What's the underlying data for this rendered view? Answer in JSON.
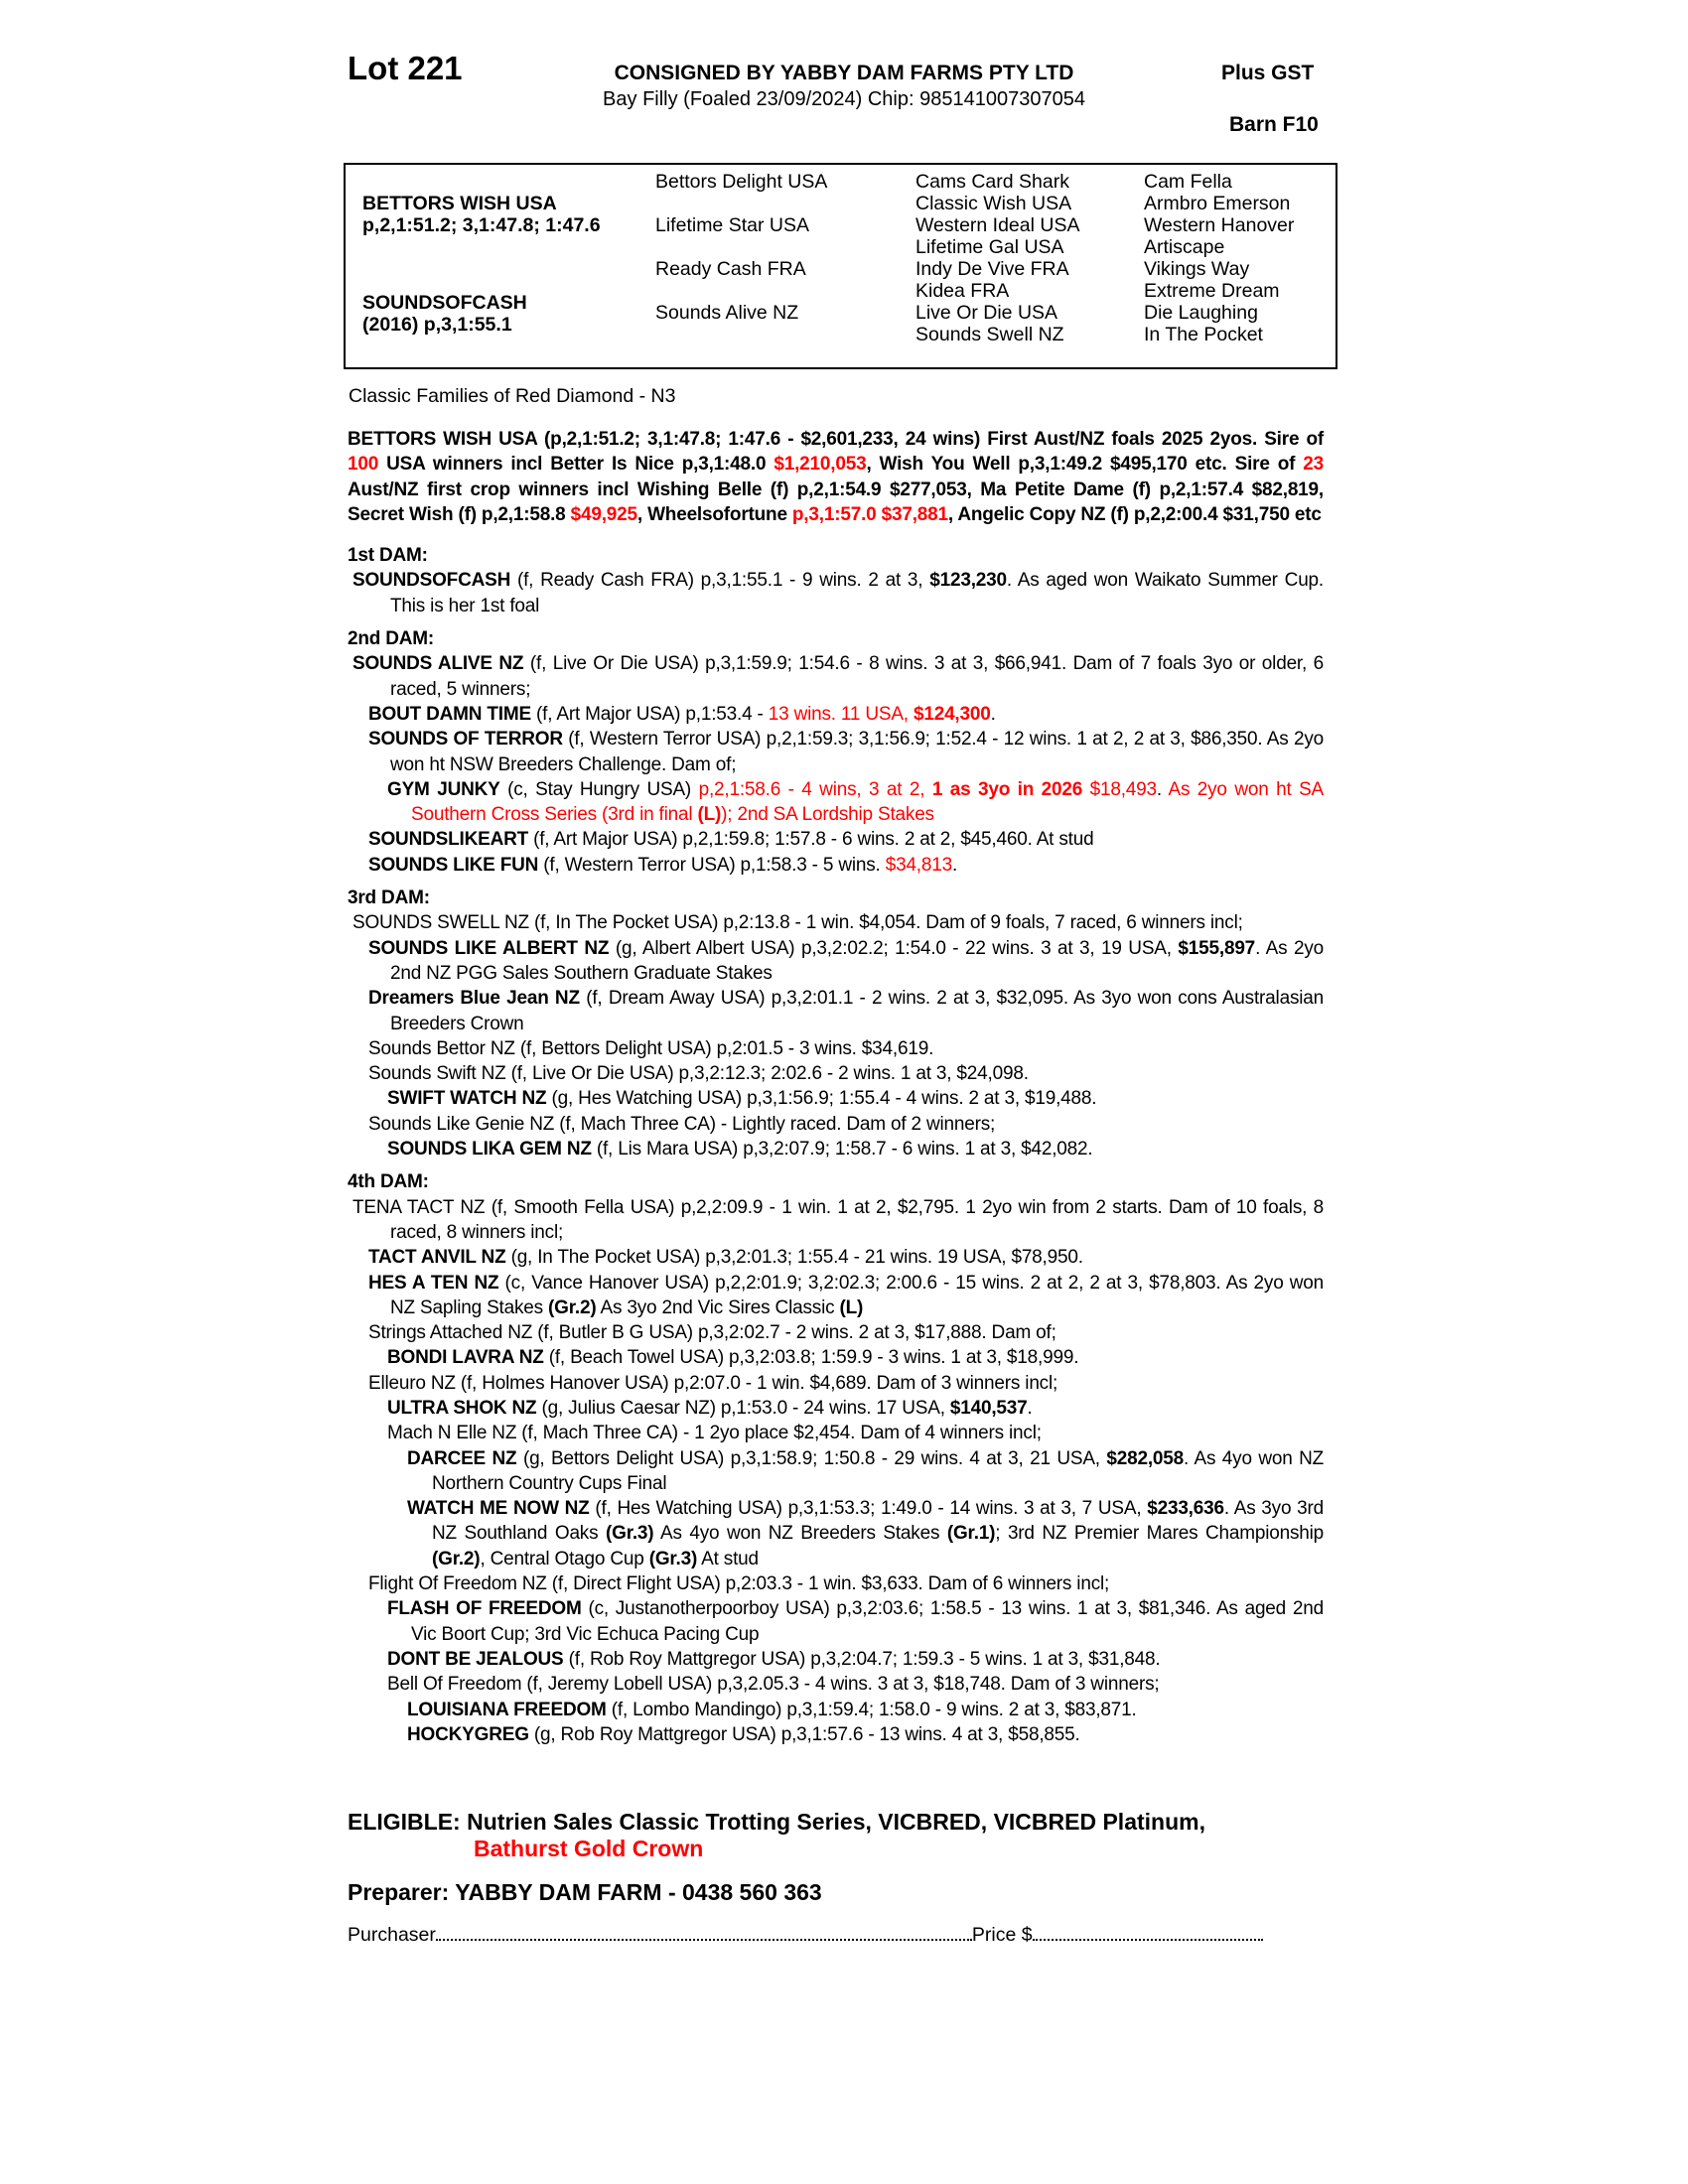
{
  "header": {
    "lot": "Lot 221",
    "consigned": "CONSIGNED BY YABBY DAM FARMS PTY LTD",
    "description": "Bay Filly (Foaled 23/09/2024) Chip: 985141007307054",
    "gst": "Plus GST",
    "barn": "Barn F10"
  },
  "pedigree": {
    "sire": {
      "name": "BETTORS WISH USA",
      "record": "p,2,1:51.2; 3,1:47.8; 1:47.6"
    },
    "dam": {
      "name": "SOUNDSOFCASH",
      "record": "(2016) p,3,1:55.1"
    },
    "gen2": [
      "Bettors Delight USA",
      "Lifetime Star USA",
      "Ready Cash FRA",
      "Sounds Alive NZ"
    ],
    "gen3": [
      "Cams Card Shark",
      "Classic Wish USA",
      "Western Ideal USA",
      "Lifetime Gal USA",
      "Indy De Vive FRA",
      "Kidea FRA",
      "Live Or Die USA",
      "Sounds Swell NZ"
    ],
    "gen4": [
      "Cam Fella",
      "Armbro Emerson",
      "Western Hanover",
      "Artiscape",
      "Vikings Way",
      "Extreme Dream",
      "Die Laughing",
      "In The Pocket"
    ]
  },
  "family": "Classic Families of Red Diamond - N3",
  "sire_para": [
    [
      "BETTORS WISH USA (p,2,1:51.2; 3,1:47.8; 1:47.6 - $2,601,233, 24 wins) First Aust/NZ foals 2025 2yos. Sire of ",
      "b"
    ],
    [
      "100",
      "br"
    ],
    [
      " USA winners incl Better Is Nice p,3,1:48.0 ",
      "b"
    ],
    [
      "$1,210,053",
      "br"
    ],
    [
      ", Wish You Well p,3,1:49.2 $495,170 etc. Sire of ",
      "b"
    ],
    [
      "23",
      "br"
    ],
    [
      " Aust/NZ first crop winners incl Wishing Belle (f) p,2,1:54.9 $277,053, Ma Petite Dame (f) p,2,1:57.4 $82,819, Secret Wish (f) p,2,1:58.8 ",
      "b"
    ],
    [
      "$49,925",
      "br"
    ],
    [
      ", Wheelsofortune ",
      "b"
    ],
    [
      "p,3,1:57.0 $37,881",
      "br"
    ],
    [
      ", Angelic Copy NZ (f) p,2,2:00.4 $31,750 etc",
      "b"
    ]
  ],
  "sections": [
    {
      "title": "1st DAM:",
      "paras": [
        {
          "lvl": 1,
          "segs": [
            [
              "SOUNDSOFCASH",
              "b"
            ],
            [
              " (f, Ready Cash FRA) p,3,1:55.1 - 9 wins. 2 at 3, ",
              ""
            ],
            [
              "$123,230",
              "b"
            ],
            [
              ". As aged won Waikato Summer Cup. This is her 1st foal",
              ""
            ]
          ]
        }
      ]
    },
    {
      "title": "2nd DAM:",
      "paras": [
        {
          "lvl": 1,
          "segs": [
            [
              "SOUNDS ALIVE NZ",
              "b"
            ],
            [
              " (f, Live Or Die USA) p,3,1:59.9; 1:54.6 - 8 wins. 3 at 3, $66,941. Dam of 7 foals 3yo or older, 6 raced, 5 winners;",
              ""
            ]
          ]
        },
        {
          "lvl": 2,
          "segs": [
            [
              "BOUT DAMN TIME",
              "b"
            ],
            [
              " (f, Art Major USA) p,1:53.4 - ",
              ""
            ],
            [
              "13 wins. 11 USA, ",
              "r"
            ],
            [
              "$124,300",
              "br"
            ],
            [
              ".",
              ""
            ]
          ]
        },
        {
          "lvl": 2,
          "segs": [
            [
              "SOUNDS OF TERROR",
              "b"
            ],
            [
              " (f, Western Terror USA) p,2,1:59.3; 3,1:56.9; 1:52.4 - 12 wins. 1 at 2, 2 at 3, $86,350. As 2yo won ht NSW Breeders Challenge. Dam of;",
              ""
            ]
          ]
        },
        {
          "lvl": 3,
          "segs": [
            [
              "GYM JUNKY",
              "b"
            ],
            [
              " (c, Stay Hungry USA) ",
              ""
            ],
            [
              "p,2,1:58.6 - 4 wins, 3 at 2, ",
              "r"
            ],
            [
              "1 as 3yo in 2026",
              "br"
            ],
            [
              " $18,493",
              "r"
            ],
            [
              ". ",
              ""
            ],
            [
              "As 2yo won ht SA Southern Cross Series (3rd in final ",
              "r"
            ],
            [
              "(L)",
              "br"
            ],
            [
              "); 2nd SA Lordship Stakes",
              "r"
            ]
          ]
        },
        {
          "lvl": 2,
          "segs": [
            [
              "SOUNDSLIKEART",
              "b"
            ],
            [
              " (f, Art Major USA) p,2,1:59.8; 1:57.8 - 6 wins. 2 at 2, $45,460. At stud",
              ""
            ]
          ]
        },
        {
          "lvl": 2,
          "segs": [
            [
              "SOUNDS LIKE FUN",
              "b"
            ],
            [
              " (f, Western Terror USA) p,1:58.3 - 5 wins. ",
              ""
            ],
            [
              "$34,813",
              "r"
            ],
            [
              ".",
              ""
            ]
          ]
        }
      ]
    },
    {
      "title": "3rd DAM:",
      "paras": [
        {
          "lvl": 1,
          "segs": [
            [
              "SOUNDS SWELL NZ (f, In The Pocket USA) p,2:13.8 - 1 win. $4,054. Dam of 9 foals, 7 raced, 6 winners incl;",
              ""
            ]
          ]
        },
        {
          "lvl": 2,
          "segs": [
            [
              "SOUNDS LIKE ALBERT NZ",
              "b"
            ],
            [
              " (g, Albert Albert USA) p,3,2:02.2; 1:54.0 - 22 wins. 3 at 3, 19 USA, ",
              ""
            ],
            [
              "$155,897",
              "b"
            ],
            [
              ". As 2yo 2nd NZ PGG Sales Southern Graduate Stakes",
              ""
            ]
          ]
        },
        {
          "lvl": 2,
          "segs": [
            [
              "Dreamers Blue Jean NZ",
              "b"
            ],
            [
              " (f, Dream Away USA) p,3,2:01.1 - 2 wins. 2 at 3, $32,095. As 3yo won cons Australasian Breeders Crown",
              ""
            ]
          ]
        },
        {
          "lvl": 2,
          "segs": [
            [
              "Sounds Bettor NZ (f, Bettors Delight USA) p,2:01.5 - 3 wins. $34,619.",
              ""
            ]
          ]
        },
        {
          "lvl": 2,
          "segs": [
            [
              "Sounds Swift NZ (f, Live Or Die USA) p,3,2:12.3; 2:02.6 - 2 wins. 1 at 3, $24,098.",
              ""
            ]
          ]
        },
        {
          "lvl": 3,
          "segs": [
            [
              "SWIFT WATCH NZ",
              "b"
            ],
            [
              " (g, Hes Watching USA) p,3,1:56.9; 1:55.4 - 4 wins. 2 at 3, $19,488.",
              ""
            ]
          ]
        },
        {
          "lvl": 2,
          "segs": [
            [
              "Sounds Like Genie NZ (f, Mach Three CA) - Lightly raced. Dam of 2 winners;",
              ""
            ]
          ]
        },
        {
          "lvl": 3,
          "segs": [
            [
              "SOUNDS LIKA GEM NZ",
              "b"
            ],
            [
              " (f, Lis Mara USA) p,3,2:07.9; 1:58.7 - 6 wins. 1 at 3, $42,082.",
              ""
            ]
          ]
        }
      ]
    },
    {
      "title": "4th DAM:",
      "paras": [
        {
          "lvl": 1,
          "segs": [
            [
              "TENA TACT NZ (f, Smooth Fella USA) p,2,2:09.9 - 1 win. 1 at 2, $2,795. 1 2yo win from 2 starts. Dam of 10 foals, 8 raced, 8 winners incl;",
              ""
            ]
          ]
        },
        {
          "lvl": 2,
          "segs": [
            [
              "TACT ANVIL NZ",
              "b"
            ],
            [
              " (g, In The Pocket USA) p,3,2:01.3; 1:55.4 - 21 wins. 19 USA, $78,950.",
              ""
            ]
          ]
        },
        {
          "lvl": 2,
          "segs": [
            [
              "HES A TEN NZ",
              "b"
            ],
            [
              " (c, Vance Hanover USA) p,2,2:01.9; 3,2:02.3; 2:00.6 - 15 wins. 2 at 2, 2 at 3, $78,803. As 2yo won NZ Sapling Stakes ",
              ""
            ],
            [
              "(Gr.2)",
              "b"
            ],
            [
              " As 3yo 2nd Vic Sires Classic ",
              ""
            ],
            [
              "(L)",
              "b"
            ]
          ]
        },
        {
          "lvl": 2,
          "segs": [
            [
              "Strings Attached NZ (f, Butler B G USA) p,3,2:02.7 - 2 wins. 2 at 3, $17,888. Dam of;",
              ""
            ]
          ]
        },
        {
          "lvl": 3,
          "segs": [
            [
              "BONDI LAVRA NZ",
              "b"
            ],
            [
              " (f, Beach Towel USA) p,3,2:03.8; 1:59.9 - 3 wins. 1 at 3, $18,999.",
              ""
            ]
          ]
        },
        {
          "lvl": 2,
          "segs": [
            [
              "Elleuro NZ (f, Holmes Hanover USA) p,2:07.0 - 1 win. $4,689. Dam of 3 winners incl;",
              ""
            ]
          ]
        },
        {
          "lvl": 3,
          "segs": [
            [
              "ULTRA SHOK NZ",
              "b"
            ],
            [
              " (g, Julius Caesar NZ) p,1:53.0 - 24 wins. 17 USA, ",
              ""
            ],
            [
              "$140,537",
              "b"
            ],
            [
              ".",
              ""
            ]
          ]
        },
        {
          "lvl": 3,
          "segs": [
            [
              "Mach N Elle NZ (f, Mach Three CA) - 1 2yo place $2,454. Dam of 4 winners incl;",
              ""
            ]
          ]
        },
        {
          "lvl": 4,
          "segs": [
            [
              "DARCEE NZ",
              "b"
            ],
            [
              " (g, Bettors Delight USA) p,3,1:58.9; 1:50.8 - 29 wins. 4 at 3, 21 USA, ",
              ""
            ],
            [
              "$282,058",
              "b"
            ],
            [
              ". As 4yo won NZ Northern Country Cups Final",
              ""
            ]
          ]
        },
        {
          "lvl": 4,
          "segs": [
            [
              "WATCH ME NOW NZ",
              "b"
            ],
            [
              " (f, Hes Watching USA) p,3,1:53.3; 1:49.0 - 14 wins. 3 at 3, 7 USA, ",
              ""
            ],
            [
              "$233,636",
              "b"
            ],
            [
              ". As 3yo 3rd NZ Southland Oaks ",
              ""
            ],
            [
              "(Gr.3)",
              "b"
            ],
            [
              " As 4yo won NZ Breeders Stakes ",
              ""
            ],
            [
              "(Gr.1)",
              "b"
            ],
            [
              "; 3rd NZ Premier Mares Championship ",
              ""
            ],
            [
              "(Gr.2)",
              "b"
            ],
            [
              ", Central Otago Cup ",
              ""
            ],
            [
              "(Gr.3)",
              "b"
            ],
            [
              " At stud",
              ""
            ]
          ]
        },
        {
          "lvl": 2,
          "segs": [
            [
              "Flight Of Freedom NZ (f, Direct Flight USA) p,2:03.3 - 1 win. $3,633. Dam of 6 winners incl;",
              ""
            ]
          ]
        },
        {
          "lvl": 3,
          "segs": [
            [
              "FLASH OF FREEDOM",
              "b"
            ],
            [
              " (c, Justanotherpoorboy USA) p,3,2:03.6; 1:58.5 - 13 wins. 1 at 3, $81,346. As aged 2nd Vic Boort Cup; 3rd Vic Echuca Pacing Cup",
              ""
            ]
          ]
        },
        {
          "lvl": 3,
          "segs": [
            [
              "DONT BE JEALOUS",
              "b"
            ],
            [
              " (f, Rob Roy Mattgregor USA) p,3,2:04.7; 1:59.3 - 5 wins. 1 at 3, $31,848.",
              ""
            ]
          ]
        },
        {
          "lvl": 3,
          "segs": [
            [
              "Bell Of Freedom (f, Jeremy Lobell USA) p,3,2.05.3 - 4 wins. 3 at 3, $18,748. Dam of 3 winners;",
              ""
            ]
          ]
        },
        {
          "lvl": 4,
          "segs": [
            [
              "LOUISIANA FREEDOM",
              "b"
            ],
            [
              " (f, Lombo Mandingo) p,3,1:59.4; 1:58.0 - 9 wins. 2 at 3, $83,871.",
              ""
            ]
          ]
        },
        {
          "lvl": 4,
          "segs": [
            [
              "HOCKYGREG",
              "b"
            ],
            [
              " (g, Rob Roy Mattgregor USA) p,3,1:57.6 - 13 wins. 4 at 3, $58,855.",
              ""
            ]
          ]
        }
      ]
    }
  ],
  "eligible": {
    "label": "ELIGIBLE:",
    "text": "Nutrien Sales Classic Trotting Series, VICBRED, VICBRED Platinum,",
    "highlight": "Bathurst Gold Crown"
  },
  "preparer": "Preparer: YABBY DAM FARM - 0438 560 363",
  "purchaser": {
    "label": "Purchaser",
    "price_label": "Price $"
  },
  "colors": {
    "highlight": "#ff0000",
    "text": "#000000"
  }
}
